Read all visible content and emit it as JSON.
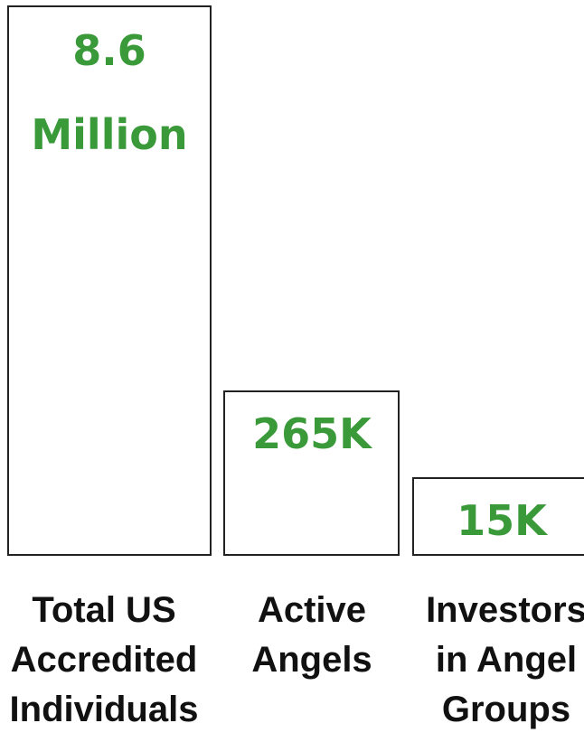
{
  "boxes": [
    {
      "value_lines": [
        "8.6",
        "Million"
      ],
      "label_lines": [
        "Total US",
        "Accredited",
        "Individuals"
      ]
    },
    {
      "value_lines": [
        "265K"
      ],
      "label_lines": [
        "Active",
        "Angels"
      ]
    },
    {
      "value_lines": [
        "15K"
      ],
      "label_lines": [
        "Investors",
        "in Angel",
        "Groups"
      ]
    }
  ]
}
